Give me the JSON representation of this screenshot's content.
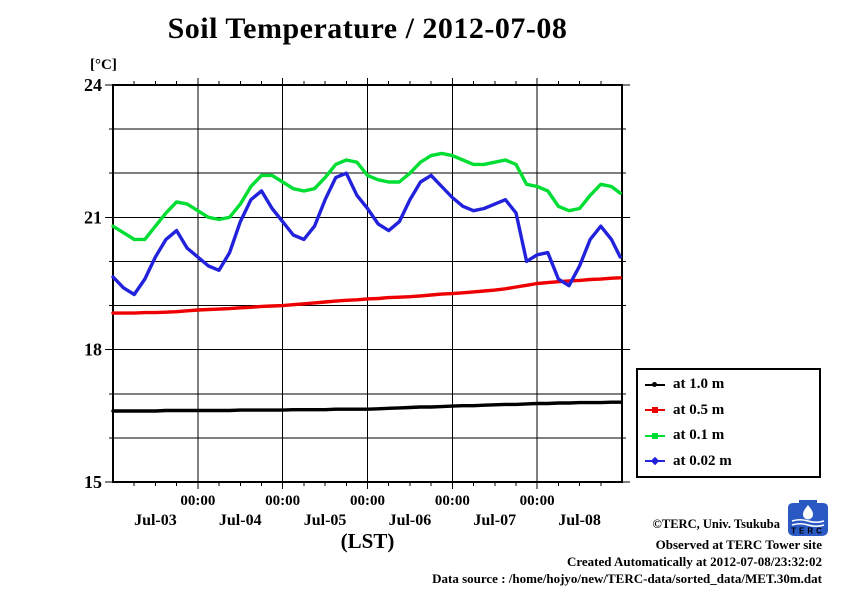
{
  "chart": {
    "title": "Soil Temperature / 2012-07-08",
    "y_unit": "[°C]",
    "xlabel": "(LST)"
  },
  "chart_data": {
    "type": "line",
    "title": "Soil Temperature / 2012-07-08",
    "xlabel": "(LST)",
    "ylabel": "[°C]",
    "ylim": [
      15,
      24
    ],
    "y_major_ticks": [
      15,
      18,
      21,
      24
    ],
    "y_grid_step_degC": 1,
    "x_range_hours": [
      0,
      144
    ],
    "x_epoch": "2012-07-03 00:00 LST",
    "x_major_tick_hours": [
      24,
      48,
      72,
      96,
      120
    ],
    "x_major_tick_label": "00:00",
    "x_minor_step_hours": 6,
    "day_labels": [
      "Jul-03",
      "Jul-04",
      "Jul-05",
      "Jul-06",
      "Jul-07",
      "Jul-08"
    ],
    "grid": "solid black, 1 °C by 1 day",
    "legend_position": "outside-right-bottom",
    "x_hours": [
      0,
      3,
      6,
      9,
      12,
      15,
      18,
      21,
      24,
      27,
      30,
      33,
      36,
      39,
      42,
      45,
      48,
      51,
      54,
      57,
      60,
      63,
      66,
      69,
      72,
      75,
      78,
      81,
      84,
      87,
      90,
      93,
      96,
      99,
      102,
      105,
      108,
      111,
      114,
      117,
      120,
      123,
      126,
      129,
      132,
      135,
      138,
      141,
      143.5
    ],
    "series": [
      {
        "name": "at 1.0 m",
        "depth_m": 1.0,
        "color": "#000000",
        "marker": "dot",
        "values": [
          16.61,
          16.61,
          16.61,
          16.61,
          16.61,
          16.62,
          16.62,
          16.62,
          16.62,
          16.62,
          16.62,
          16.62,
          16.63,
          16.63,
          16.63,
          16.63,
          16.63,
          16.64,
          16.64,
          16.64,
          16.64,
          16.65,
          16.65,
          16.65,
          16.65,
          16.66,
          16.67,
          16.68,
          16.69,
          16.7,
          16.7,
          16.71,
          16.72,
          16.73,
          16.73,
          16.74,
          16.75,
          16.76,
          16.76,
          16.77,
          16.78,
          16.78,
          16.79,
          16.79,
          16.8,
          16.8,
          16.8,
          16.81,
          16.81
        ]
      },
      {
        "name": "at 0.5 m",
        "depth_m": 0.5,
        "color": "#ee0000",
        "marker": "square",
        "values": [
          18.83,
          18.83,
          18.83,
          18.84,
          18.84,
          18.85,
          18.86,
          18.88,
          18.9,
          18.91,
          18.92,
          18.93,
          18.95,
          18.96,
          18.98,
          18.99,
          19.0,
          19.02,
          19.04,
          19.06,
          19.08,
          19.1,
          19.12,
          19.13,
          19.15,
          19.16,
          19.18,
          19.19,
          19.2,
          19.22,
          19.24,
          19.26,
          19.27,
          19.29,
          19.31,
          19.33,
          19.35,
          19.38,
          19.42,
          19.46,
          19.5,
          19.52,
          19.54,
          19.56,
          19.57,
          19.59,
          19.6,
          19.62,
          19.63
        ]
      },
      {
        "name": "at 0.1 m",
        "depth_m": 0.1,
        "color": "#00dd33",
        "marker": "square",
        "values": [
          20.8,
          20.65,
          20.5,
          20.5,
          20.8,
          21.1,
          21.35,
          21.3,
          21.15,
          21.0,
          20.95,
          21.0,
          21.3,
          21.7,
          21.95,
          21.95,
          21.8,
          21.65,
          21.6,
          21.65,
          21.9,
          22.2,
          22.3,
          22.25,
          21.95,
          21.85,
          21.8,
          21.8,
          22.0,
          22.25,
          22.4,
          22.45,
          22.4,
          22.3,
          22.2,
          22.2,
          22.25,
          22.3,
          22.2,
          21.75,
          21.7,
          21.6,
          21.25,
          21.15,
          21.2,
          21.5,
          21.75,
          21.7,
          21.55
        ]
      },
      {
        "name": "at 0.02 m",
        "depth_m": 0.02,
        "color": "#2222dd",
        "marker": "diamond",
        "values": [
          19.65,
          19.4,
          19.25,
          19.6,
          20.1,
          20.5,
          20.7,
          20.3,
          20.1,
          19.9,
          19.8,
          20.2,
          20.9,
          21.4,
          21.6,
          21.2,
          20.9,
          20.6,
          20.5,
          20.8,
          21.4,
          21.9,
          22.0,
          21.5,
          21.2,
          20.85,
          20.7,
          20.9,
          21.4,
          21.8,
          21.95,
          21.7,
          21.45,
          21.25,
          21.15,
          21.2,
          21.3,
          21.4,
          21.1,
          20.0,
          20.15,
          20.2,
          19.6,
          19.45,
          19.9,
          20.5,
          20.8,
          20.5,
          20.1
        ]
      }
    ]
  },
  "legend": {
    "items": [
      {
        "label": "at 1.0 m"
      },
      {
        "label": "at 0.5 m"
      },
      {
        "label": "at 0.1 m"
      },
      {
        "label": "at 0.02 m"
      }
    ]
  },
  "footer": {
    "credit": "©TERC, Univ. Tsukuba",
    "observed": "Observed at TERC Tower site",
    "created": "Created Automatically at 2012-07-08/23:32:02",
    "source": "Data source : /home/hojyo/new/TERC-data/sorted_data/MET.30m.dat",
    "logo_text": "TERC"
  }
}
